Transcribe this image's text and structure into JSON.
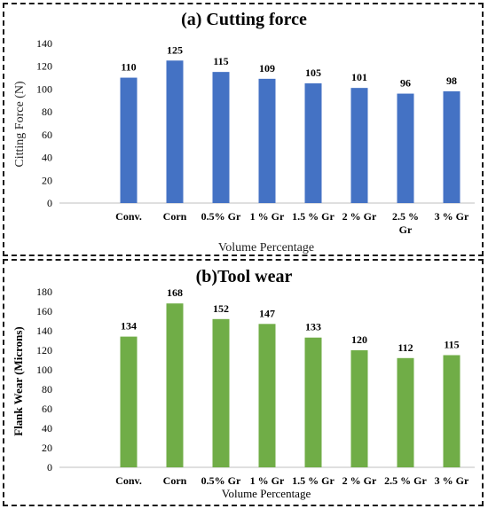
{
  "chart_data": [
    {
      "type": "bar",
      "title": "(a) Cutting force",
      "ylabel": "Citting Force (N)",
      "xlabel": "Volume Percentage",
      "categories": [
        "",
        "Conv.",
        "Corn",
        "0.5% Gr",
        "1 % Gr",
        "1.5 % Gr",
        "2 % Gr",
        "2.5 % Gr",
        "3 % Gr"
      ],
      "values": [
        null,
        110,
        125,
        115,
        109,
        105,
        101,
        96,
        98
      ],
      "ylim": [
        0,
        140
      ],
      "ytick_step": 20,
      "color": "#4472C4",
      "grid": false,
      "legend": "none"
    },
    {
      "type": "bar",
      "title": "(b)Tool wear",
      "ylabel": "Flank Wear (Microns)",
      "xlabel": "Volume Percentage",
      "categories": [
        "",
        "Conv.",
        "Corn",
        "0.5% Gr",
        "1 % Gr",
        "1.5 % Gr",
        "2 % Gr",
        "2.5 % Gr",
        "3 % Gr"
      ],
      "values": [
        null,
        134,
        168,
        152,
        147,
        133,
        120,
        112,
        115
      ],
      "ylim": [
        0,
        180
      ],
      "ytick_step": 20,
      "color": "#70AD47",
      "grid": false,
      "legend": "none"
    }
  ]
}
